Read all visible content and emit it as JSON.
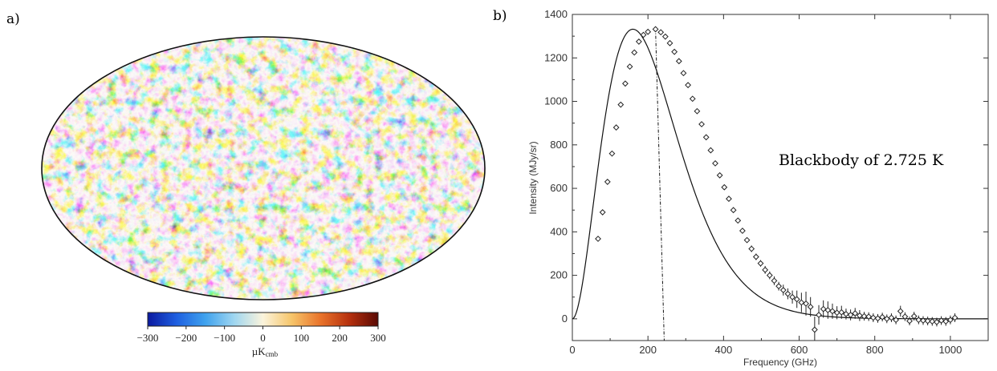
{
  "panels": {
    "a_label": "a)",
    "b_label": "b)"
  },
  "chart_data": [
    {
      "type": "heatmap",
      "projection": "mollweide",
      "colorbar": {
        "ticks": [
          "−300",
          "−200",
          "−100",
          "0",
          "100",
          "200",
          "300"
        ],
        "range": [
          -300,
          300
        ],
        "unit_label": "µK",
        "unit_sub": "cmb",
        "colors": [
          "#0b1aa0",
          "#1e5fe0",
          "#3fa2ee",
          "#9fd6f0",
          "#fbf4dc",
          "#f6c56a",
          "#e9732a",
          "#b5300e",
          "#5a0a04"
        ]
      }
    },
    {
      "type": "scatter",
      "xlabel": "Frequency (GHz)",
      "ylabel": "Intensity (MJy/sr)",
      "xlim": [
        0,
        1100
      ],
      "ylim": [
        -100,
        1400
      ],
      "xticks": [
        0,
        200,
        400,
        600,
        800,
        1000
      ],
      "yticks": [
        0,
        200,
        400,
        600,
        800,
        1000,
        1200,
        1400
      ],
      "annotation": "Blackbody of 2.725 K",
      "fit": {
        "type": "blackbody",
        "temperature_K": 2.725
      },
      "peak_line": {
        "from": [
          220,
          1335
        ],
        "to": [
          243,
          -100
        ]
      },
      "points": [
        {
          "x": 68,
          "y": 368,
          "err": 0
        },
        {
          "x": 80,
          "y": 490,
          "err": 0
        },
        {
          "x": 93,
          "y": 630,
          "err": 0
        },
        {
          "x": 105,
          "y": 760,
          "err": 0
        },
        {
          "x": 116,
          "y": 880,
          "err": 0
        },
        {
          "x": 128,
          "y": 985,
          "err": 0
        },
        {
          "x": 140,
          "y": 1082,
          "err": 0
        },
        {
          "x": 152,
          "y": 1160,
          "err": 0
        },
        {
          "x": 164,
          "y": 1225,
          "err": 0
        },
        {
          "x": 176,
          "y": 1275,
          "err": 0
        },
        {
          "x": 188,
          "y": 1306,
          "err": 0
        },
        {
          "x": 200,
          "y": 1320,
          "err": 0
        },
        {
          "x": 220,
          "y": 1332,
          "err": 0
        },
        {
          "x": 234,
          "y": 1318,
          "err": 0
        },
        {
          "x": 246,
          "y": 1298,
          "err": 0
        },
        {
          "x": 258,
          "y": 1268,
          "err": 0
        },
        {
          "x": 270,
          "y": 1228,
          "err": 0
        },
        {
          "x": 282,
          "y": 1185,
          "err": 0
        },
        {
          "x": 294,
          "y": 1130,
          "err": 0
        },
        {
          "x": 306,
          "y": 1075,
          "err": 0
        },
        {
          "x": 318,
          "y": 1012,
          "err": 0
        },
        {
          "x": 330,
          "y": 955,
          "err": 0
        },
        {
          "x": 342,
          "y": 895,
          "err": 0
        },
        {
          "x": 354,
          "y": 835,
          "err": 0
        },
        {
          "x": 366,
          "y": 775,
          "err": 0
        },
        {
          "x": 378,
          "y": 715,
          "err": 0
        },
        {
          "x": 390,
          "y": 660,
          "err": 10
        },
        {
          "x": 402,
          "y": 605,
          "err": 10
        },
        {
          "x": 414,
          "y": 552,
          "err": 10
        },
        {
          "x": 426,
          "y": 500,
          "err": 10
        },
        {
          "x": 438,
          "y": 452,
          "err": 12
        },
        {
          "x": 450,
          "y": 405,
          "err": 12
        },
        {
          "x": 462,
          "y": 362,
          "err": 12
        },
        {
          "x": 474,
          "y": 322,
          "err": 15
        },
        {
          "x": 486,
          "y": 285,
          "err": 15
        },
        {
          "x": 498,
          "y": 255,
          "err": 15
        },
        {
          "x": 510,
          "y": 225,
          "err": 18
        },
        {
          "x": 522,
          "y": 200,
          "err": 18
        },
        {
          "x": 534,
          "y": 175,
          "err": 20
        },
        {
          "x": 546,
          "y": 150,
          "err": 20
        },
        {
          "x": 558,
          "y": 132,
          "err": 25
        },
        {
          "x": 570,
          "y": 115,
          "err": 25
        },
        {
          "x": 582,
          "y": 100,
          "err": 30
        },
        {
          "x": 594,
          "y": 90,
          "err": 40
        },
        {
          "x": 606,
          "y": 75,
          "err": 45
        },
        {
          "x": 618,
          "y": 70,
          "err": 55
        },
        {
          "x": 630,
          "y": 55,
          "err": 45
        },
        {
          "x": 641,
          "y": -50,
          "err": 60
        },
        {
          "x": 652,
          "y": 18,
          "err": 45
        },
        {
          "x": 664,
          "y": 45,
          "err": 40
        },
        {
          "x": 676,
          "y": 40,
          "err": 40
        },
        {
          "x": 688,
          "y": 35,
          "err": 35
        },
        {
          "x": 700,
          "y": 28,
          "err": 30
        },
        {
          "x": 712,
          "y": 30,
          "err": 30
        },
        {
          "x": 724,
          "y": 22,
          "err": 25
        },
        {
          "x": 736,
          "y": 18,
          "err": 25
        },
        {
          "x": 748,
          "y": 25,
          "err": 25
        },
        {
          "x": 760,
          "y": 15,
          "err": 25
        },
        {
          "x": 772,
          "y": 12,
          "err": 20
        },
        {
          "x": 784,
          "y": 10,
          "err": 20
        },
        {
          "x": 796,
          "y": 5,
          "err": 20
        },
        {
          "x": 808,
          "y": 2,
          "err": 20
        },
        {
          "x": 820,
          "y": 8,
          "err": 20
        },
        {
          "x": 832,
          "y": 0,
          "err": 20
        },
        {
          "x": 844,
          "y": 5,
          "err": 20
        },
        {
          "x": 856,
          "y": -5,
          "err": 20
        },
        {
          "x": 868,
          "y": 35,
          "err": 25
        },
        {
          "x": 880,
          "y": 10,
          "err": 20
        },
        {
          "x": 892,
          "y": -10,
          "err": 20
        },
        {
          "x": 904,
          "y": 12,
          "err": 20
        },
        {
          "x": 916,
          "y": -5,
          "err": 20
        },
        {
          "x": 928,
          "y": -8,
          "err": 20
        },
        {
          "x": 940,
          "y": -10,
          "err": 20
        },
        {
          "x": 952,
          "y": -12,
          "err": 20
        },
        {
          "x": 964,
          "y": -15,
          "err": 20
        },
        {
          "x": 976,
          "y": -8,
          "err": 20
        },
        {
          "x": 988,
          "y": -12,
          "err": 20
        },
        {
          "x": 1000,
          "y": -5,
          "err": 20
        },
        {
          "x": 1012,
          "y": 5,
          "err": 20
        }
      ]
    }
  ]
}
